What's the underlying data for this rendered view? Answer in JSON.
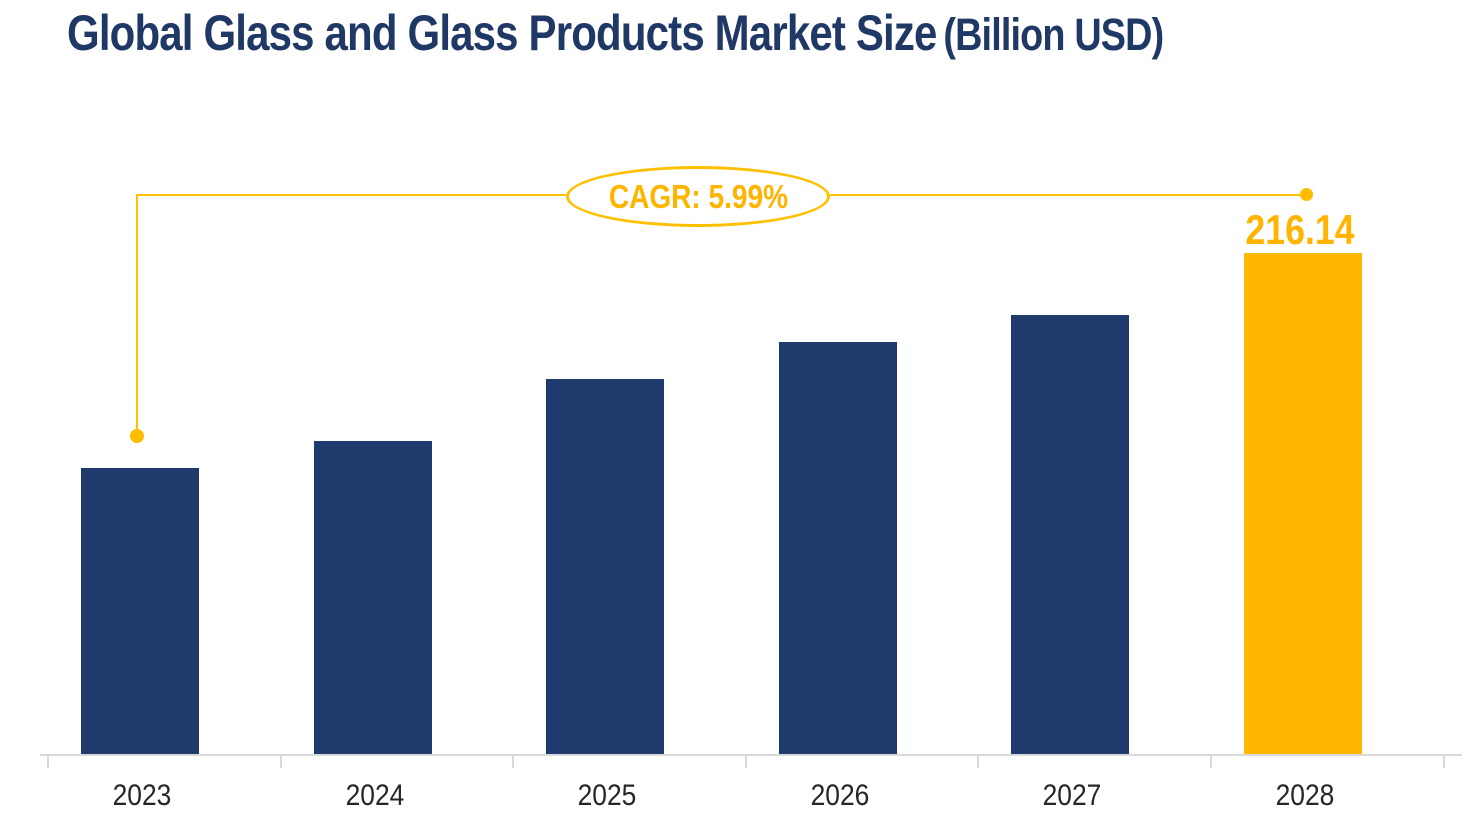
{
  "title": {
    "main": "Global Glass and Glass Products Market Size",
    "suffix": "(Billion USD)",
    "color": "#1F3865"
  },
  "chart_data": {
    "type": "bar",
    "title": "Global Glass and Glass Products Market Size (Billion USD)",
    "categories": [
      "2023",
      "2024",
      "2025",
      "2026",
      "2027",
      "2028"
    ],
    "values": [
      161.6,
      168.3,
      184.2,
      193.6,
      200.5,
      216.14
    ],
    "xlabel": "",
    "ylabel": "",
    "ylim": [
      89,
      224
    ],
    "y_axis_shown": false,
    "grid": false,
    "legend": false,
    "bar_colors": {
      "default": "#1F3A6C",
      "highlight": "#FFB700"
    },
    "highlight_category": "2028",
    "data_label": {
      "category": "2028",
      "text": "216.14",
      "color": "#FFB400"
    },
    "annotation": {
      "text": "CAGR: 5.99%",
      "shape": "ellipse",
      "line_color": "#FFC000",
      "text_color": "#FFB400"
    },
    "axis_color": "#D9D9D9",
    "tick_label_color": "#262626"
  }
}
